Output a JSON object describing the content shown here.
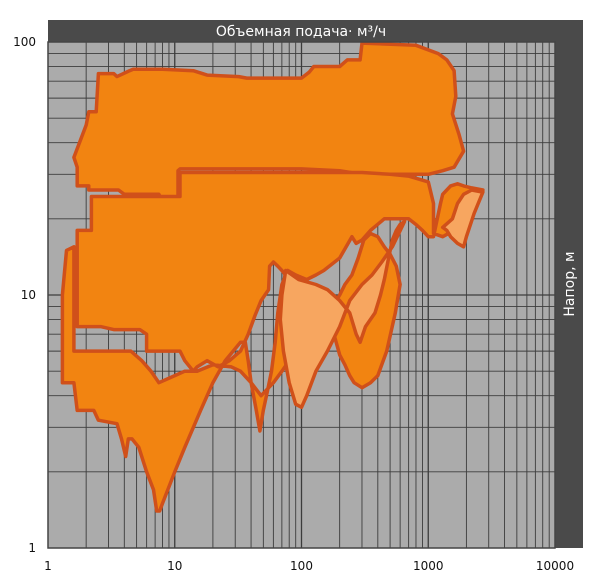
{
  "chart_data": {
    "type": "area",
    "title": "Объемная подача· м³/ч",
    "xlabel": "Объемная подача· м³/ч",
    "ylabel": "Напор, м",
    "xscale": "log",
    "yscale": "log",
    "xlim": [
      1,
      10000
    ],
    "ylim": [
      1,
      100
    ],
    "x_ticks": [
      {
        "value": 1,
        "label": "1"
      },
      {
        "value": 10,
        "label": "10"
      },
      {
        "value": 100,
        "label": "100"
      },
      {
        "value": 1000,
        "label": "1000"
      },
      {
        "value": 10000,
        "label": "10000"
      }
    ],
    "y_ticks": [
      {
        "value": 1,
        "label": "1"
      },
      {
        "value": 10,
        "label": "10"
      },
      {
        "value": 100,
        "label": "100"
      }
    ],
    "grid": true,
    "series": [
      {
        "name": "range-upper",
        "style": "dark",
        "points": [
          [
            1.6,
            35
          ],
          [
            2.0,
            47
          ],
          [
            2.1,
            53
          ],
          [
            2.4,
            53
          ],
          [
            2.5,
            75
          ],
          [
            3.3,
            75
          ],
          [
            3.5,
            73
          ],
          [
            4.4,
            77
          ],
          [
            4.7,
            78
          ],
          [
            8,
            78
          ],
          [
            14,
            77
          ],
          [
            18,
            74
          ],
          [
            32,
            73
          ],
          [
            37,
            72
          ],
          [
            90,
            72
          ],
          [
            100,
            72
          ],
          [
            115,
            76
          ],
          [
            125,
            80
          ],
          [
            200,
            80
          ],
          [
            230,
            85
          ],
          [
            290,
            85
          ],
          [
            300,
            99
          ],
          [
            800,
            97
          ],
          [
            1200,
            90
          ],
          [
            1400,
            85
          ],
          [
            1600,
            77
          ],
          [
            1650,
            61
          ],
          [
            1550,
            52
          ],
          [
            1750,
            43
          ],
          [
            1900,
            37
          ],
          [
            1600,
            32
          ],
          [
            1300,
            31
          ],
          [
            1000,
            30
          ],
          [
            600,
            30
          ],
          [
            300,
            30
          ],
          [
            200,
            31
          ],
          [
            100,
            31.5
          ],
          [
            60,
            31.5
          ],
          [
            40,
            31.5
          ],
          [
            30,
            31.5
          ],
          [
            20,
            31.5
          ],
          [
            15,
            31.5
          ],
          [
            11,
            31.5
          ],
          [
            10.6,
            31
          ],
          [
            10.6,
            24
          ],
          [
            7.8,
            24
          ],
          [
            7.5,
            25
          ],
          [
            4,
            25
          ],
          [
            3.6,
            26
          ],
          [
            2.1,
            26
          ],
          [
            2.1,
            27
          ],
          [
            1.7,
            27
          ],
          [
            1.7,
            32
          ],
          [
            1.6,
            35
          ]
        ]
      },
      {
        "name": "range-main",
        "style": "dark",
        "points": [
          [
            1.4,
            15
          ],
          [
            1.3,
            10
          ],
          [
            1.3,
            4.5
          ],
          [
            1.6,
            4.5
          ],
          [
            1.7,
            3.5
          ],
          [
            2.3,
            3.5
          ],
          [
            2.5,
            3.2
          ],
          [
            3.5,
            3.1
          ],
          [
            3.8,
            2.7
          ],
          [
            4.1,
            2.3
          ],
          [
            4.3,
            2.7
          ],
          [
            4.6,
            2.7
          ],
          [
            5.2,
            2.5
          ],
          [
            6,
            2.0
          ],
          [
            6.8,
            1.7
          ],
          [
            7.2,
            1.4
          ],
          [
            7.6,
            1.4
          ],
          [
            8,
            1.5
          ],
          [
            10,
            2.0
          ],
          [
            12,
            2.5
          ],
          [
            16,
            3.5
          ],
          [
            20,
            4.5
          ],
          [
            25,
            5.5
          ],
          [
            33,
            6.5
          ],
          [
            36,
            6.5
          ],
          [
            38,
            5.5
          ],
          [
            40,
            4.5
          ],
          [
            44,
            3.5
          ],
          [
            47,
            2.9
          ],
          [
            50,
            3.5
          ],
          [
            54,
            4.2
          ],
          [
            58,
            5.0
          ],
          [
            62,
            6.5
          ],
          [
            65,
            8.5
          ],
          [
            70,
            11
          ],
          [
            78,
            12.5
          ],
          [
            90,
            12.0
          ],
          [
            110,
            11.5
          ],
          [
            130,
            12.0
          ],
          [
            150,
            12.5
          ],
          [
            200,
            14.0
          ],
          [
            250,
            17.0
          ],
          [
            270,
            16.0
          ],
          [
            300,
            16.5
          ],
          [
            350,
            18.0
          ],
          [
            450,
            20.0
          ],
          [
            600,
            20.0
          ],
          [
            700,
            20.0
          ],
          [
            800,
            19.0
          ],
          [
            900,
            18.0
          ],
          [
            1000,
            17.0
          ],
          [
            1100,
            17.0
          ],
          [
            1250,
            23.0
          ],
          [
            1300,
            25.0
          ],
          [
            1500,
            27.0
          ],
          [
            1700,
            27.5
          ],
          [
            1900,
            27.0
          ],
          [
            2200,
            26.5
          ],
          [
            2700,
            26.0
          ],
          [
            1900,
            20.0
          ],
          [
            1600,
            18.0
          ],
          [
            1300,
            17.0
          ],
          [
            1100,
            17.5
          ],
          [
            1100,
            23.0
          ],
          [
            1000,
            28.0
          ],
          [
            700,
            29.5
          ],
          [
            500,
            30.0
          ],
          [
            300,
            30.5
          ],
          [
            150,
            30.5
          ],
          [
            100,
            30.5
          ],
          [
            60,
            30.5
          ],
          [
            11,
            30.5
          ],
          [
            11,
            24.5
          ],
          [
            5.2,
            24.5
          ],
          [
            2.2,
            24.5
          ],
          [
            2.2,
            18.0
          ],
          [
            1.7,
            18.0
          ],
          [
            1.7,
            7.5
          ],
          [
            2.0,
            7.5
          ],
          [
            2.6,
            7.5
          ],
          [
            3.3,
            7.3
          ],
          [
            3.8,
            7.3
          ],
          [
            5.3,
            7.3
          ],
          [
            6.0,
            7.0
          ],
          [
            6.0,
            6.0
          ],
          [
            11,
            6.0
          ],
          [
            12,
            5.5
          ],
          [
            14,
            5.0
          ],
          [
            15,
            5.2
          ],
          [
            18,
            5.5
          ],
          [
            22,
            5.2
          ],
          [
            27,
            5.5
          ],
          [
            33,
            6.0
          ],
          [
            38,
            7.0
          ],
          [
            43,
            8.3
          ],
          [
            48,
            9.5
          ],
          [
            55,
            10.5
          ],
          [
            56,
            13.0
          ],
          [
            60,
            13.5
          ],
          [
            65,
            13.0
          ],
          [
            70,
            12.5
          ],
          [
            75,
            12.0
          ],
          [
            84,
            12.0
          ],
          [
            90,
            11.8
          ],
          [
            95,
            11.5
          ],
          [
            110,
            9.7
          ],
          [
            130,
            9.0
          ],
          [
            160,
            8.0
          ],
          [
            180,
            7.0
          ],
          [
            200,
            5.8
          ],
          [
            220,
            5.3
          ],
          [
            240,
            4.8
          ],
          [
            260,
            4.5
          ],
          [
            300,
            4.3
          ],
          [
            350,
            4.5
          ],
          [
            400,
            4.8
          ],
          [
            470,
            6.0
          ],
          [
            550,
            8.5
          ],
          [
            600,
            11.0
          ],
          [
            560,
            13.0
          ],
          [
            500,
            14.5
          ],
          [
            450,
            15.5
          ],
          [
            400,
            17.0
          ],
          [
            350,
            17.5
          ],
          [
            310,
            16.5
          ],
          [
            280,
            14.0
          ],
          [
            250,
            12.0
          ],
          [
            220,
            11.0
          ],
          [
            200,
            10.0
          ],
          [
            180,
            9.2
          ],
          [
            150,
            9.2
          ],
          [
            130,
            9.0
          ],
          [
            110,
            8.0
          ],
          [
            100,
            7.0
          ],
          [
            90,
            6.0
          ],
          [
            80,
            5.5
          ],
          [
            70,
            5.0
          ],
          [
            60,
            4.5
          ],
          [
            48,
            4.0
          ],
          [
            40,
            4.5
          ],
          [
            33,
            5.0
          ],
          [
            28,
            5.2
          ],
          [
            20,
            5.3
          ],
          [
            15,
            5.0
          ],
          [
            12,
            5.0
          ],
          [
            10,
            4.8
          ],
          [
            7.5,
            4.5
          ],
          [
            6.5,
            5.0
          ],
          [
            5.5,
            5.5
          ],
          [
            4.5,
            6.0
          ],
          [
            3.5,
            6.0
          ],
          [
            2.0,
            6.0
          ],
          [
            1.6,
            6.0
          ],
          [
            1.6,
            15.5
          ],
          [
            1.4,
            15
          ]
        ]
      },
      {
        "name": "range-extension",
        "style": "light",
        "points": [
          [
            75,
            12.5
          ],
          [
            95,
            11.5
          ],
          [
            130,
            11.0
          ],
          [
            160,
            10.5
          ],
          [
            200,
            9.5
          ],
          [
            240,
            8.5
          ],
          [
            270,
            7.0
          ],
          [
            290,
            6.5
          ],
          [
            320,
            7.5
          ],
          [
            380,
            8.5
          ],
          [
            420,
            10.0
          ],
          [
            450,
            11.5
          ],
          [
            480,
            13.5
          ],
          [
            520,
            16.5
          ],
          [
            560,
            18.0
          ],
          [
            600,
            19.0
          ],
          [
            650,
            19.5
          ],
          [
            520,
            15.5
          ],
          [
            430,
            13.5
          ],
          [
            360,
            12.0
          ],
          [
            300,
            11.0
          ],
          [
            240,
            9.5
          ],
          [
            200,
            7.5
          ],
          [
            160,
            6.0
          ],
          [
            130,
            5.0
          ],
          [
            110,
            4.0
          ],
          [
            100,
            3.6
          ],
          [
            90,
            3.7
          ],
          [
            80,
            4.5
          ],
          [
            72,
            6.0
          ],
          [
            68,
            8.0
          ],
          [
            70,
            10.0
          ],
          [
            75,
            12.5
          ]
        ]
      },
      {
        "name": "range-extension-2",
        "style": "light",
        "points": [
          [
            1550,
            20.0
          ],
          [
            1700,
            23.0
          ],
          [
            1900,
            25.0
          ],
          [
            2200,
            26.0
          ],
          [
            2700,
            25.5
          ],
          [
            2300,
            21.0
          ],
          [
            2000,
            17.0
          ],
          [
            1900,
            15.5
          ],
          [
            1700,
            16.0
          ],
          [
            1500,
            17.0
          ],
          [
            1400,
            18.0
          ],
          [
            1300,
            18.5
          ],
          [
            1550,
            20.0
          ]
        ]
      }
    ]
  }
}
